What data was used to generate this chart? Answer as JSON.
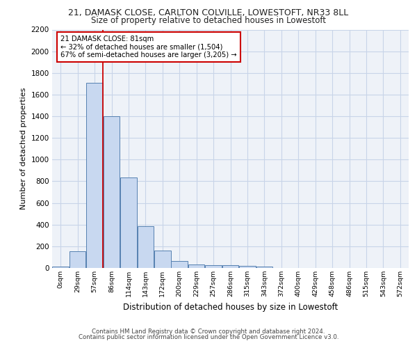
{
  "title1": "21, DAMASK CLOSE, CARLTON COLVILLE, LOWESTOFT, NR33 8LL",
  "title2": "Size of property relative to detached houses in Lowestoft",
  "xlabel": "Distribution of detached houses by size in Lowestoft",
  "ylabel": "Number of detached properties",
  "bar_labels": [
    "0sqm",
    "29sqm",
    "57sqm",
    "86sqm",
    "114sqm",
    "143sqm",
    "172sqm",
    "200sqm",
    "229sqm",
    "257sqm",
    "286sqm",
    "315sqm",
    "343sqm",
    "372sqm",
    "400sqm",
    "429sqm",
    "458sqm",
    "486sqm",
    "515sqm",
    "543sqm",
    "572sqm"
  ],
  "bar_values": [
    15,
    155,
    1710,
    1400,
    835,
    385,
    160,
    65,
    35,
    25,
    25,
    20,
    15,
    0,
    0,
    0,
    0,
    0,
    0,
    0,
    0
  ],
  "bar_color": "#c8d8f0",
  "bar_edge_color": "#5580b0",
  "ylim": [
    0,
    2200
  ],
  "yticks": [
    0,
    200,
    400,
    600,
    800,
    1000,
    1200,
    1400,
    1600,
    1800,
    2000,
    2200
  ],
  "property_line_label": "21 DAMASK CLOSE: 81sqm",
  "annotation_line1": "← 32% of detached houses are smaller (1,504)",
  "annotation_line2": "67% of semi-detached houses are larger (3,205) →",
  "vline_color": "#cc0000",
  "footer1": "Contains HM Land Registry data © Crown copyright and database right 2024.",
  "footer2": "Contains public sector information licensed under the Open Government Licence v3.0.",
  "background_color": "#ffffff",
  "plot_bg_color": "#eef2f8",
  "grid_color": "#c8d4e8"
}
